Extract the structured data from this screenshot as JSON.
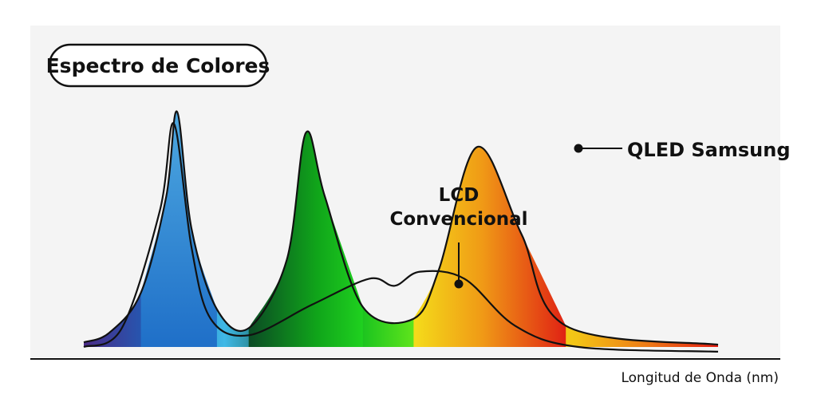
{
  "chart_data": {
    "type": "line",
    "title": "Espectro de Colores",
    "xlabel": "Longitud de Onda (nm)",
    "ylabel": "",
    "grid": false,
    "annotations": [
      {
        "text": "QLED Samsung",
        "series": "QLED Samsung"
      },
      {
        "text_lines": [
          "LCD",
          "Convencional"
        ],
        "series": "LCD Convencional"
      }
    ],
    "series": [
      {
        "name": "QLED Samsung",
        "description": "three narrow peaks filled with spectrum gradient (blue, green, red)",
        "points": [
          [
            0,
            0.02
          ],
          [
            0.04,
            0.06
          ],
          [
            0.09,
            0.23
          ],
          [
            0.13,
            0.64
          ],
          [
            0.147,
            1.0
          ],
          [
            0.17,
            0.5
          ],
          [
            0.21,
            0.16
          ],
          [
            0.26,
            0.08
          ],
          [
            0.32,
            0.37
          ],
          [
            0.35,
            0.91
          ],
          [
            0.38,
            0.64
          ],
          [
            0.44,
            0.17
          ],
          [
            0.52,
            0.12
          ],
          [
            0.56,
            0.33
          ],
          [
            0.62,
            0.85
          ],
          [
            0.69,
            0.48
          ],
          [
            0.76,
            0.09
          ],
          [
            1.0,
            0.01
          ]
        ]
      },
      {
        "name": "LCD Convencional",
        "description": "one narrow blue peak and broad low overlapping humps",
        "points": [
          [
            0,
            0.0
          ],
          [
            0.06,
            0.08
          ],
          [
            0.12,
            0.58
          ],
          [
            0.142,
            0.95
          ],
          [
            0.17,
            0.42
          ],
          [
            0.2,
            0.12
          ],
          [
            0.26,
            0.05
          ],
          [
            0.36,
            0.18
          ],
          [
            0.45,
            0.29
          ],
          [
            0.49,
            0.26
          ],
          [
            0.53,
            0.32
          ],
          [
            0.6,
            0.29
          ],
          [
            0.68,
            0.09
          ],
          [
            0.78,
            0.0
          ],
          [
            1.0,
            -0.02
          ]
        ]
      }
    ],
    "colors": {
      "background": "#f4f4f4",
      "spectrum": [
        "#4a2a86",
        "#1f5fb8",
        "#3fb8e6",
        "#0b4a2a",
        "#1fc61f",
        "#7cf21a",
        "#f3ea1a",
        "#f2c316",
        "#ee7a16",
        "#e31c12"
      ],
      "curve_stroke": "#111111",
      "qled_blue_peak": [
        "#1f6fc8",
        "#4da8e0"
      ],
      "qled_green_peak": [
        "#0b5a2a",
        "#1fd11f"
      ],
      "qled_red_peak": [
        "#f3d21a",
        "#e3301a"
      ]
    }
  }
}
